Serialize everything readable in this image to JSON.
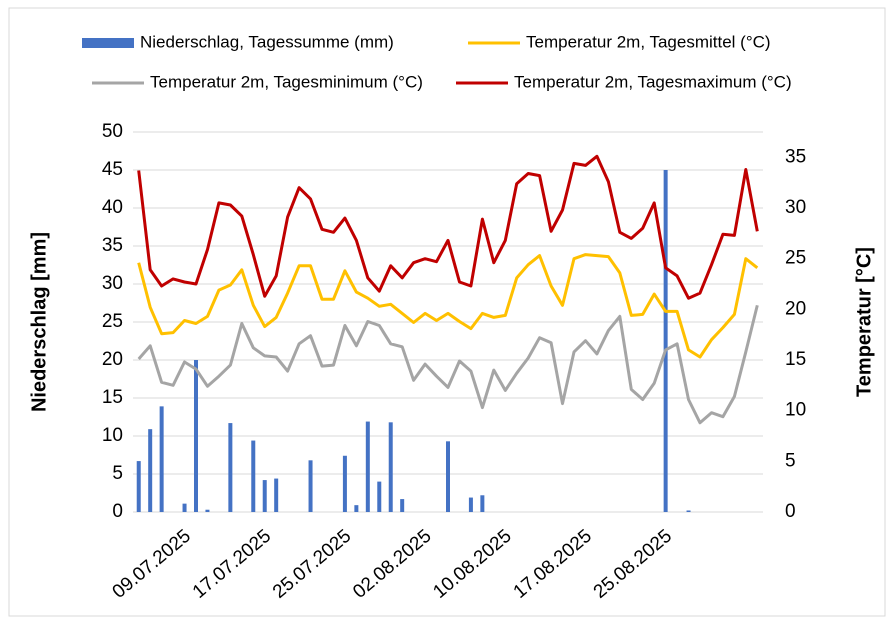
{
  "chart_data": {
    "type": "bar-line",
    "y_label": "Niederschlag [mm]",
    "y2_label": "Temperatur [°C]",
    "categories": [
      null,
      null,
      null,
      null,
      "09.07.2025",
      null,
      null,
      null,
      null,
      null,
      null,
      "17.07.2025",
      null,
      null,
      null,
      null,
      null,
      null,
      "25.07.2025",
      null,
      null,
      null,
      null,
      null,
      null,
      "02.08.2025",
      null,
      null,
      null,
      null,
      null,
      null,
      "10.08.2025",
      null,
      null,
      null,
      null,
      null,
      null,
      "17.08.2025",
      null,
      null,
      null,
      null,
      null,
      null,
      "25.08.2025",
      null,
      null,
      null,
      null,
      null,
      null,
      null,
      null
    ],
    "series": [
      {
        "name": "Niederschlag, Tagessumme (mm)",
        "type": "bar",
        "color": "#4472c4",
        "axis": "y",
        "values": [
          6.7,
          10.9,
          13.9,
          0,
          1.1,
          20,
          0.3,
          0,
          11.7,
          0,
          9.4,
          4.2,
          4.4,
          0,
          0,
          6.8,
          0,
          0,
          7.4,
          0.9,
          11.9,
          4.0,
          11.8,
          1.7,
          0,
          0,
          0,
          9.3,
          0,
          1.9,
          2.2,
          0,
          0,
          0,
          0,
          0,
          0,
          0,
          0,
          0,
          0,
          0,
          0,
          0,
          0,
          0,
          45,
          0,
          0.2,
          0,
          0,
          0,
          0,
          0,
          0
        ]
      },
      {
        "name": "Temperatur 2m, Tagesmittel (°C)",
        "type": "line",
        "color": "#ffc000",
        "axis": "y2",
        "values": [
          24.6,
          20.2,
          17.6,
          17.7,
          18.9,
          18.6,
          19.3,
          21.9,
          22.4,
          23.9,
          20.4,
          18.3,
          19.2,
          21.6,
          24.3,
          24.3,
          21,
          21,
          23.8,
          21.7,
          21.1,
          20.3,
          20.5,
          19.6,
          18.7,
          19.6,
          18.9,
          19.6,
          18.8,
          18.1,
          19.6,
          19.2,
          19.4,
          23.1,
          24.4,
          25.3,
          22.3,
          20.4,
          25,
          25.4,
          25.3,
          25.2,
          23.6,
          19.4,
          19.5,
          21.5,
          19.8,
          19.8,
          16,
          15.3,
          17,
          18.2,
          19.5,
          25,
          24.1
        ]
      },
      {
        "name": "Temperatur 2m, Tagesminimum (°C)",
        "type": "line",
        "color": "#a5a5a5",
        "axis": "y2",
        "values": [
          15.1,
          16.4,
          12.8,
          12.5,
          14.8,
          14.1,
          12.4,
          13.4,
          14.5,
          18.6,
          16.2,
          15.4,
          15.3,
          13.9,
          16.6,
          17.4,
          14.4,
          14.5,
          18.4,
          16.4,
          18.8,
          18.4,
          16.6,
          16.3,
          13,
          14.6,
          13.4,
          12.3,
          14.9,
          13.9,
          10.3,
          14,
          12,
          13.7,
          15.2,
          17.2,
          16.7,
          10.7,
          15.8,
          16.9,
          15.6,
          17.9,
          19.3,
          12.1,
          11.1,
          12.7,
          16,
          16.6,
          11.1,
          8.8,
          9.8,
          9.4,
          11.4,
          15.8,
          20.4
        ]
      },
      {
        "name": "Temperatur 2m, Tagesmaximum (°C)",
        "type": "line",
        "color": "#c00000",
        "axis": "y2",
        "values": [
          33.7,
          23.9,
          22.3,
          23,
          22.7,
          22.5,
          25.9,
          30.5,
          30.3,
          29.2,
          25.4,
          21.3,
          23.3,
          29.1,
          32,
          30.9,
          27.9,
          27.6,
          29,
          26.8,
          23.1,
          21.8,
          24.3,
          23.1,
          24.6,
          25,
          24.7,
          26.8,
          22.7,
          22.3,
          28.9,
          24.6,
          26.8,
          32.4,
          33.4,
          33.2,
          27.7,
          29.8,
          34.4,
          34.2,
          35.1,
          32.6,
          27.6,
          27,
          28,
          30.5,
          24.1,
          23.3,
          21.1,
          21.6,
          24.4,
          27.4,
          27.3,
          33.8,
          27.7
        ]
      }
    ],
    "ylim": [
      0,
      50
    ],
    "yticks": [
      0,
      5,
      10,
      15,
      20,
      25,
      30,
      35,
      40,
      45,
      50
    ],
    "y2lim": [
      0,
      37.5
    ],
    "y2ticks": [
      0,
      5,
      10,
      15,
      20,
      25,
      30,
      35
    ],
    "grid": true
  }
}
